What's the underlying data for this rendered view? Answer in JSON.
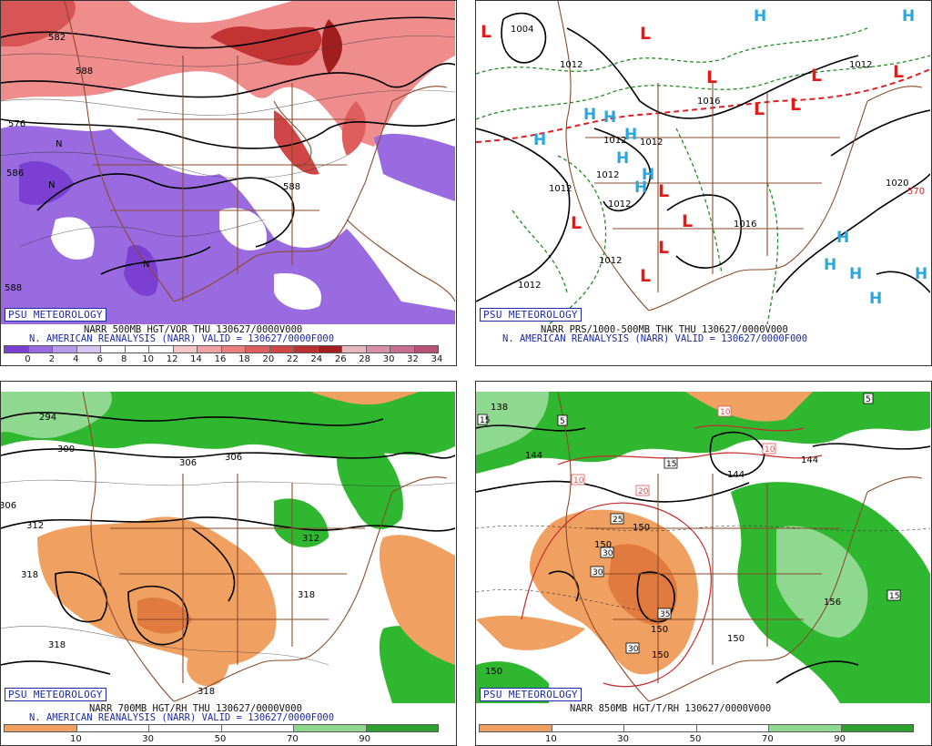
{
  "brand": "PSU METEOROLOGY",
  "panels": {
    "tl": {
      "caption1": "NARR 500MB HGT/VOR THU 130627/0000V000",
      "caption2": "N. AMERICAN REANALYSIS (NARR) VALID = 130627/0000F000",
      "contours": [
        "582",
        "588",
        "576",
        "586",
        "588",
        "588",
        "N",
        "N",
        "N"
      ],
      "colorbar": {
        "colors": [
          "#7b3fd1",
          "#9a6ae0",
          "#b79aea",
          "#d6c6f3",
          "#ffffff",
          "#ffffff",
          "#ffffff",
          "#f5c7c7",
          "#f0a3a3",
          "#e98080",
          "#de5e5e",
          "#d04646",
          "#bb3131",
          "#a11e1e",
          "#e8b8c0",
          "#d890a8",
          "#c86e90",
          "#b85077"
        ],
        "ticks": [
          "0",
          "2",
          "4",
          "6",
          "8",
          "10",
          "12",
          "14",
          "16",
          "18",
          "20",
          "22",
          "24",
          "26",
          "28",
          "30",
          "32",
          "34"
        ]
      }
    },
    "tr": {
      "caption1": "NARR PRS/1000-500MB THK THU 130627/0000V000",
      "caption2": "N. AMERICAN REANALYSIS (NARR) VALID = 130627/0000F000",
      "contours": [
        "1004",
        "1012",
        "1012",
        "1012",
        "1012",
        "1012",
        "1012",
        "1012",
        "1012",
        "1012",
        "1020",
        "570",
        "1016",
        "1016"
      ],
      "lows": [
        "L",
        "L",
        "L",
        "L",
        "L",
        "L",
        "L",
        "L",
        "L",
        "L",
        "L",
        "L"
      ],
      "highs": [
        "H",
        "H",
        "H",
        "H",
        "H",
        "H",
        "H",
        "H",
        "H",
        "H",
        "H",
        "H",
        "H",
        "H"
      ]
    },
    "bl": {
      "caption1": "NARR 700MB HGT/RH THU 130627/0000V000",
      "caption2": "N. AMERICAN REANALYSIS (NARR) VALID = 130627/0000F000",
      "contours": [
        "294",
        "300",
        "306",
        "306",
        "306",
        "312",
        "312",
        "318",
        "318",
        "318",
        "318"
      ],
      "colorbar": {
        "colors": [
          "#f0a060",
          "#ffffff",
          "#ffffff",
          "#ffffff",
          "#8fd88f",
          "#2f9f2f"
        ],
        "ticks": [
          "10",
          "30",
          "50",
          "70",
          "90"
        ]
      }
    },
    "br": {
      "caption1": "NARR 850MB HGT/T/RH 130627/0000V000",
      "contours": [
        "138",
        "144",
        "144",
        "144",
        "150",
        "150",
        "150",
        "150",
        "150",
        "156",
        "150"
      ],
      "boxed": [
        "5",
        "5",
        "10",
        "10",
        "10",
        "15",
        "15",
        "20",
        "25",
        "30",
        "30",
        "35",
        "30",
        "15"
      ],
      "colorbar": {
        "colors": [
          "#f0a060",
          "#ffffff",
          "#ffffff",
          "#ffffff",
          "#8fd88f",
          "#2f9f2f"
        ],
        "ticks": [
          "10",
          "30",
          "50",
          "70",
          "90"
        ]
      }
    }
  }
}
